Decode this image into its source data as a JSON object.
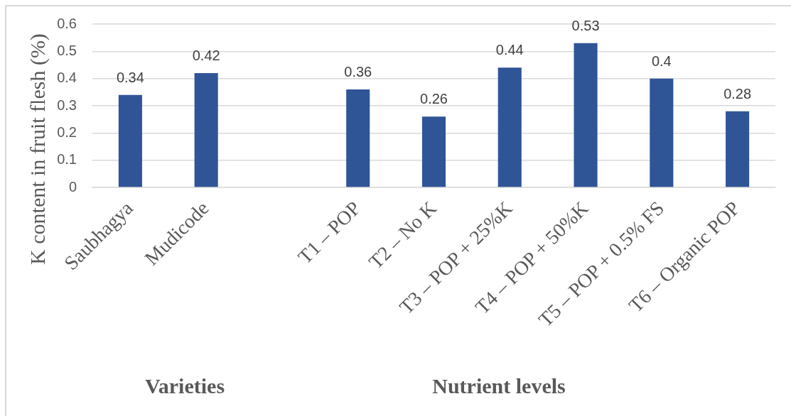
{
  "chart_data": {
    "type": "bar",
    "categories": [
      "Saubhagya",
      "Mudicode",
      null,
      "T1 – POP",
      "T2 – No K",
      "T3 – POP + 25%K",
      "T4 – POP + 50%K",
      "T5 – POP + 0.5% FS",
      "T6 – Organic POP"
    ],
    "values": [
      0.34,
      0.42,
      null,
      0.36,
      0.26,
      0.44,
      0.53,
      0.4,
      0.28
    ],
    "color": "#2f5597",
    "ylabel": "K content in fruit flesh (%)",
    "ylim": [
      0,
      0.6
    ],
    "yticks": [
      0,
      0.1,
      0.2,
      0.3,
      0.4,
      0.5,
      0.6
    ],
    "grid": "y",
    "data_labels": true,
    "legend": false,
    "annotations": [
      "Varieties",
      "Nutrient levels"
    ]
  }
}
